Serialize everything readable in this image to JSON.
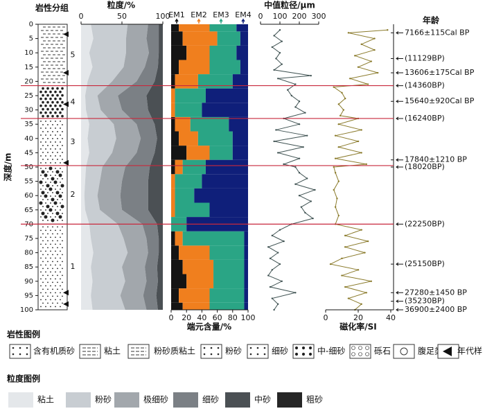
{
  "depth_axis": {
    "label": "深度/m",
    "ylim": [
      0,
      100
    ],
    "yticks": [
      0,
      5,
      10,
      15,
      20,
      25,
      30,
      35,
      40,
      45,
      50,
      55,
      60,
      65,
      70,
      75,
      80,
      85,
      90,
      95,
      100
    ]
  },
  "boundaries": [
    21.5,
    33,
    49.5,
    70
  ],
  "chart_data": [
    {
      "type": "lithology",
      "title": "岩性分组",
      "units": [
        {
          "label": "5",
          "top": 0,
          "bottom": 21.5
        },
        {
          "label": "4",
          "top": 21.5,
          "bottom": 33
        },
        {
          "label": "3",
          "top": 33,
          "bottom": 49.5
        },
        {
          "label": "2",
          "top": 49.5,
          "bottom": 70
        },
        {
          "label": "1",
          "top": 70,
          "bottom": 100
        }
      ],
      "sample_depths": [
        3.5,
        17,
        28,
        48.5,
        94,
        98
      ]
    },
    {
      "type": "stacked-area",
      "title": "粒度/%",
      "xlim": [
        0,
        100
      ],
      "xticks": [
        0,
        50,
        100
      ],
      "depth": [
        0,
        5,
        10,
        15,
        20,
        25,
        30,
        35,
        40,
        45,
        50,
        55,
        60,
        65,
        70,
        75,
        80,
        85,
        90,
        95,
        100
      ],
      "series": [
        {
          "name": "粘土",
          "color": "#e4e7ea",
          "values": [
            12,
            15,
            10,
            14,
            8,
            5,
            6,
            10,
            8,
            10,
            6,
            5,
            4,
            5,
            10,
            12,
            15,
            12,
            14,
            12,
            14
          ]
        },
        {
          "name": "粉砂",
          "color": "#c8cdd2",
          "values": [
            45,
            40,
            45,
            38,
            30,
            15,
            18,
            30,
            35,
            28,
            20,
            18,
            16,
            18,
            35,
            40,
            42,
            38,
            40,
            36,
            40
          ]
        },
        {
          "name": "极细砂",
          "color": "#a2a7ac",
          "values": [
            25,
            25,
            28,
            26,
            30,
            25,
            26,
            28,
            30,
            30,
            28,
            27,
            28,
            27,
            30,
            28,
            25,
            28,
            26,
            28,
            26
          ]
        },
        {
          "name": "细砂",
          "color": "#7b8085",
          "values": [
            13,
            15,
            12,
            16,
            22,
            35,
            32,
            22,
            20,
            22,
            30,
            32,
            34,
            32,
            18,
            15,
            13,
            15,
            14,
            16,
            14
          ]
        },
        {
          "name": "中砂",
          "color": "#4b5054",
          "values": [
            5,
            5,
            5,
            6,
            10,
            20,
            18,
            10,
            7,
            10,
            16,
            18,
            18,
            18,
            7,
            5,
            5,
            7,
            6,
            8,
            6
          ]
        },
        {
          "name": "粗砂",
          "color": "#262626",
          "values": [
            0,
            0,
            0,
            0,
            0,
            0,
            0,
            0,
            0,
            0,
            0,
            0,
            0,
            0,
            0,
            0,
            0,
            0,
            0,
            0,
            0
          ]
        }
      ]
    },
    {
      "type": "stacked-bar",
      "xlabel": "端元含量/%",
      "xlim": [
        0,
        100
      ],
      "xticks": [
        0,
        20,
        40,
        60,
        80,
        100
      ],
      "depth": [
        0,
        5,
        10,
        15,
        20,
        25,
        30,
        35,
        40,
        45,
        50,
        55,
        60,
        65,
        70,
        75,
        80,
        85,
        90,
        95,
        100
      ],
      "series": [
        {
          "name": "EM1",
          "color": "#141414",
          "values": [
            10,
            15,
            20,
            10,
            5,
            0,
            0,
            5,
            10,
            20,
            5,
            0,
            0,
            0,
            0,
            5,
            10,
            15,
            20,
            10,
            15
          ]
        },
        {
          "name": "EM2",
          "color": "#f07f1e",
          "values": [
            40,
            45,
            30,
            40,
            30,
            5,
            5,
            20,
            25,
            30,
            10,
            5,
            5,
            5,
            0,
            10,
            40,
            40,
            35,
            40,
            35
          ]
        },
        {
          "name": "EM3",
          "color": "#2aa585",
          "values": [
            35,
            30,
            35,
            40,
            45,
            40,
            35,
            50,
            45,
            30,
            30,
            35,
            25,
            45,
            20,
            80,
            45,
            40,
            40,
            45,
            45
          ]
        },
        {
          "name": "EM4",
          "color": "#0f1f7a",
          "values": [
            15,
            10,
            15,
            10,
            20,
            55,
            60,
            25,
            20,
            20,
            55,
            60,
            70,
            50,
            80,
            5,
            5,
            5,
            5,
            5,
            5
          ]
        }
      ]
    },
    {
      "type": "line",
      "title": "中值粒径/μm",
      "xlim": [
        0,
        300
      ],
      "xticks": [
        0,
        100,
        200,
        300
      ],
      "color": "#3f5252",
      "depth": [
        2,
        4,
        6,
        8,
        10,
        12,
        14,
        16,
        18,
        19,
        21,
        23,
        25,
        27,
        29,
        31,
        33,
        35,
        37,
        39,
        41,
        43,
        45,
        47,
        49,
        50,
        52,
        54,
        56,
        58,
        60,
        62,
        64,
        66,
        68,
        70,
        72,
        74,
        76,
        78,
        80,
        82,
        84,
        86,
        88,
        90,
        92,
        94,
        96,
        98,
        100
      ],
      "values": [
        100,
        70,
        110,
        60,
        100,
        80,
        110,
        70,
        260,
        90,
        180,
        140,
        160,
        200,
        180,
        230,
        120,
        200,
        80,
        240,
        70,
        220,
        90,
        200,
        120,
        180,
        200,
        240,
        180,
        280,
        200,
        260,
        210,
        230,
        270,
        160,
        100,
        60,
        120,
        40,
        90,
        50,
        100,
        60,
        40,
        110,
        50,
        180,
        60,
        90,
        70
      ]
    },
    {
      "type": "line",
      "xlabel": "磁化率/SI",
      "xlim": [
        0,
        40
      ],
      "xticks": [
        0,
        20,
        40
      ],
      "color": "#8a7a2a",
      "depth": [
        2,
        3,
        5,
        7,
        9,
        11,
        13,
        15,
        17,
        19,
        21,
        22,
        24,
        26,
        28,
        30,
        32,
        33,
        35,
        37,
        39,
        41,
        43,
        45,
        47,
        49,
        50,
        52,
        55,
        58,
        61,
        64,
        67,
        70,
        72,
        74,
        76,
        78,
        80,
        82,
        84,
        86,
        88,
        90,
        92,
        94,
        96,
        98,
        100
      ],
      "values": [
        38,
        14,
        30,
        22,
        30,
        18,
        28,
        20,
        32,
        15,
        26,
        5,
        10,
        12,
        8,
        11,
        9,
        20,
        8,
        22,
        6,
        20,
        8,
        22,
        6,
        25,
        5,
        6,
        8,
        5,
        7,
        6,
        8,
        6,
        22,
        12,
        26,
        12,
        24,
        10,
        3,
        20,
        10,
        28,
        12,
        25,
        14,
        22,
        18
      ]
    },
    {
      "type": "age-axis",
      "title": "年龄",
      "depth": [
        3,
        12,
        17,
        21.5,
        27,
        33,
        47.5,
        50,
        70,
        84,
        94,
        97,
        100
      ],
      "labels": [
        "7166±115Cal BP",
        "(11129BP)",
        "13606±175Cal BP",
        "(14360BP)",
        "15640±920Cal BP",
        "(16240BP)",
        "17840±1210 BP",
        "(18020BP)",
        "(22250BP)",
        "(25150BP)",
        "27280±1450 BP",
        "(35230BP)",
        "36900±2400 BP"
      ]
    }
  ],
  "lithology_legend": {
    "title": "岩性图例",
    "items": [
      "含有机质砂",
      "粘土",
      "粉砂质粘土",
      "粉砂",
      "细砂",
      "中-细砂",
      "砾石",
      "腹足类",
      "年代样"
    ]
  },
  "grain_legend": {
    "title": "粒度图例"
  }
}
